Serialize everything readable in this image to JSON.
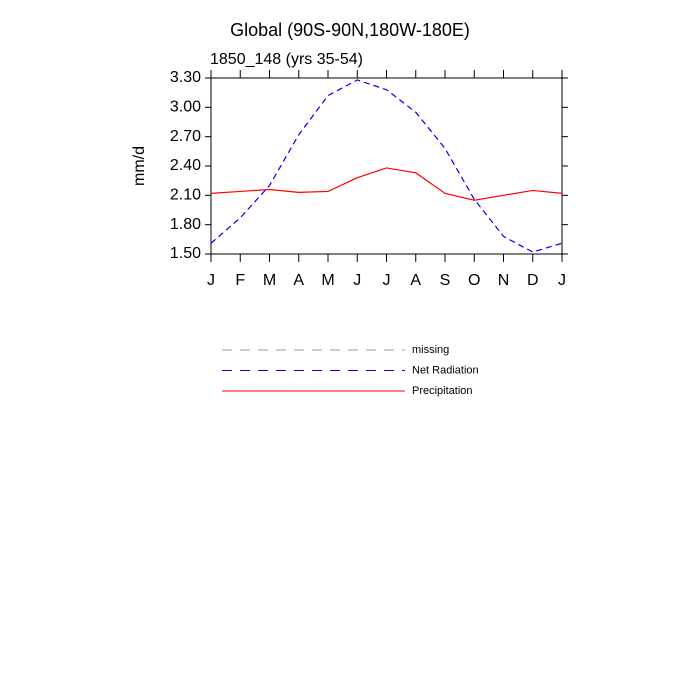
{
  "chart_data": {
    "type": "line",
    "title": "Global (90S-90N,180W-180E)",
    "subtitle": "1850_148 (yrs 35-54)",
    "y_label": "mm/d",
    "categories": [
      "J",
      "F",
      "M",
      "A",
      "M",
      "J",
      "J",
      "A",
      "S",
      "O",
      "N",
      "D",
      "J"
    ],
    "ylim": [
      1.5,
      3.3
    ],
    "yticks": [
      {
        "value": 1.5,
        "label": "1.50"
      },
      {
        "value": 1.8,
        "label": "1.80"
      },
      {
        "value": 2.1,
        "label": "2.10"
      },
      {
        "value": 2.4,
        "label": "2.40"
      },
      {
        "value": 2.7,
        "label": "2.70"
      },
      {
        "value": 3.0,
        "label": "3.00"
      },
      {
        "value": 3.3,
        "label": "3.30"
      }
    ],
    "grid": false,
    "series": [
      {
        "name": "missing",
        "color": "#999999",
        "dash": true,
        "values": [
          null,
          null,
          null,
          null,
          null,
          null,
          null,
          null,
          null,
          null,
          null,
          null,
          null
        ]
      },
      {
        "name": "Net Radiation",
        "color": "#0000ff",
        "dash": true,
        "values": [
          1.61,
          1.87,
          2.2,
          2.72,
          3.12,
          3.28,
          3.18,
          2.95,
          2.58,
          2.06,
          1.68,
          1.52,
          1.61
        ]
      },
      {
        "name": "Precipitation",
        "color": "#ff0000",
        "dash": false,
        "values": [
          2.12,
          2.14,
          2.16,
          2.13,
          2.14,
          2.28,
          2.38,
          2.33,
          2.12,
          2.05,
          2.1,
          2.15,
          2.12
        ]
      }
    ]
  }
}
